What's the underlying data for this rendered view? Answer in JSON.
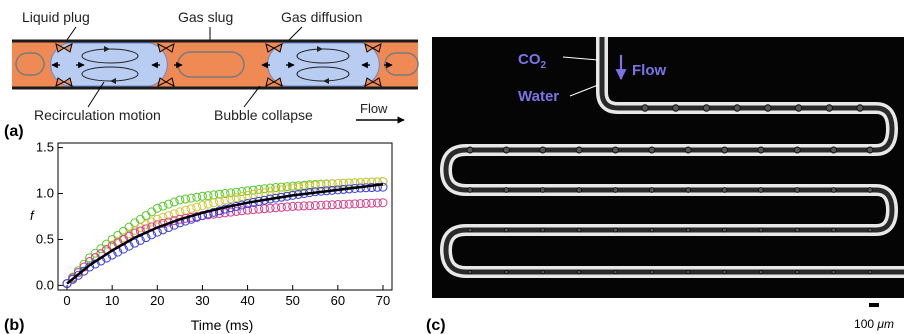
{
  "panel_a": {
    "panel_label": "(a)",
    "labels": {
      "liquid_plug": "Liquid plug",
      "gas_slug": "Gas slug",
      "gas_diffusion": "Gas diffusion",
      "recirculation": "Recirculation motion",
      "bubble_collapse": "Bubble collapse",
      "flow": "Flow"
    },
    "colors": {
      "liquid": "#f08a55",
      "gas": "#b9ccf2",
      "wall": "#1a1a1a",
      "diffusion_arrow": "#f08a55"
    }
  },
  "panel_b": {
    "panel_label": "(b)",
    "chart_data": {
      "type": "scatter",
      "xlabel": "Time (ms)",
      "ylabel": "f",
      "xlim": [
        -2,
        72
      ],
      "ylim": [
        -0.05,
        1.55
      ],
      "xticks": [
        0,
        10,
        20,
        30,
        40,
        50,
        60,
        70
      ],
      "yticks": [
        0.0,
        0.5,
        1.0,
        1.5
      ],
      "ytick_labels": [
        "0.0",
        "0.5",
        "1.0",
        "1.5"
      ],
      "series": [
        {
          "color": "#59c92b",
          "x": [
            0,
            5,
            10,
            15,
            20,
            25,
            30,
            35,
            40,
            45,
            50,
            55,
            60,
            65,
            70
          ],
          "y": [
            0.02,
            0.3,
            0.5,
            0.68,
            0.84,
            0.93,
            0.97,
            1.0,
            1.03,
            1.06,
            1.08,
            1.1,
            1.11,
            1.12,
            1.13
          ]
        },
        {
          "color": "#d6c53a",
          "x": [
            0,
            5,
            10,
            15,
            20,
            25,
            30,
            35,
            40,
            45,
            50,
            55,
            60,
            65,
            70
          ],
          "y": [
            0.02,
            0.26,
            0.44,
            0.6,
            0.72,
            0.8,
            0.87,
            0.93,
            0.98,
            1.02,
            1.06,
            1.09,
            1.11,
            1.12,
            1.13
          ]
        },
        {
          "color": "#d43f8a",
          "x": [
            0,
            5,
            10,
            15,
            20,
            25,
            30,
            35,
            40,
            45,
            50,
            55,
            60,
            65,
            70
          ],
          "y": [
            0.02,
            0.26,
            0.43,
            0.57,
            0.66,
            0.72,
            0.76,
            0.79,
            0.82,
            0.84,
            0.86,
            0.87,
            0.88,
            0.89,
            0.9
          ]
        },
        {
          "color": "#3a3fd6",
          "x": [
            0,
            5,
            10,
            15,
            20,
            25,
            30,
            35,
            40,
            45,
            50,
            55,
            60,
            65,
            70
          ],
          "y": [
            0.02,
            0.2,
            0.33,
            0.46,
            0.58,
            0.68,
            0.76,
            0.83,
            0.89,
            0.94,
            0.98,
            1.02,
            1.04,
            1.06,
            1.07
          ]
        }
      ],
      "fit": {
        "color": "#000000",
        "x": [
          0,
          5,
          10,
          15,
          20,
          25,
          30,
          35,
          40,
          45,
          50,
          55,
          60,
          65,
          70
        ],
        "y": [
          0.02,
          0.22,
          0.38,
          0.52,
          0.63,
          0.72,
          0.79,
          0.85,
          0.9,
          0.94,
          0.98,
          1.01,
          1.04,
          1.07,
          1.1
        ]
      }
    }
  },
  "panel_c": {
    "panel_label": "(c)",
    "co2_label": "CO",
    "co2_subscript": "2",
    "water_label": "Water",
    "flow_label": "Flow",
    "scale_value": "100 ",
    "scale_unit": "μm",
    "colors": {
      "annotation": "#7c74e6",
      "background": "#050505",
      "channel": "#e8e8e8"
    }
  }
}
